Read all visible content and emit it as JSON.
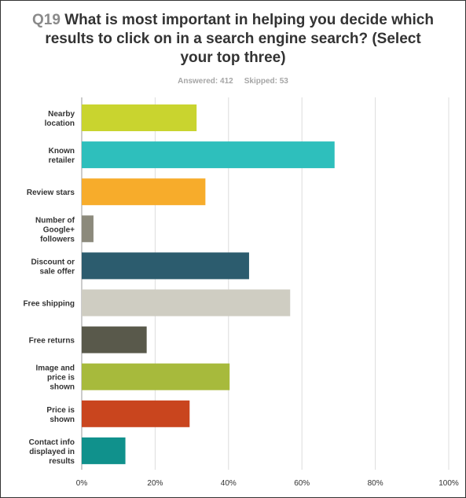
{
  "header": {
    "qnum": "Q19",
    "question": "What is most important in helping you decide which results to click on in a search engine search? (Select your top three)",
    "answered_label": "Answered:",
    "answered_value": "412",
    "skipped_label": "Skipped:",
    "skipped_value": "53"
  },
  "chart_data": {
    "type": "bar",
    "orientation": "horizontal",
    "categories": [
      "Nearby location",
      "Known retailer",
      "Review stars",
      "Number of Google+ followers",
      "Discount or sale offer",
      "Free shipping",
      "Free returns",
      "Image and price is shown",
      "Price is shown",
      "Contact info displayed in results"
    ],
    "category_label_lines": [
      [
        "Nearby",
        "location"
      ],
      [
        "Known",
        "retailer"
      ],
      [
        "Review stars"
      ],
      [
        "Number of",
        "Google+",
        "followers"
      ],
      [
        "Discount or",
        "sale offer"
      ],
      [
        "Free shipping"
      ],
      [
        "Free returns"
      ],
      [
        "Image and",
        "price is",
        "shown"
      ],
      [
        "Price is",
        "shown"
      ],
      [
        "Contact info",
        "displayed in",
        "results"
      ]
    ],
    "values": [
      31.3,
      68.9,
      33.7,
      3.2,
      45.6,
      56.8,
      17.7,
      40.3,
      29.4,
      11.9
    ],
    "colors": [
      "#c9d42f",
      "#2ebfbc",
      "#f7ac2b",
      "#8c8a7c",
      "#2c5c6e",
      "#cfcdc2",
      "#59594b",
      "#a7ba3c",
      "#c9451e",
      "#10918c"
    ],
    "xlim": [
      0,
      100
    ],
    "xticks": [
      "0%",
      "20%",
      "40%",
      "60%",
      "80%",
      "100%"
    ],
    "xtick_values": [
      0,
      20,
      40,
      60,
      80,
      100
    ],
    "grid": true
  }
}
